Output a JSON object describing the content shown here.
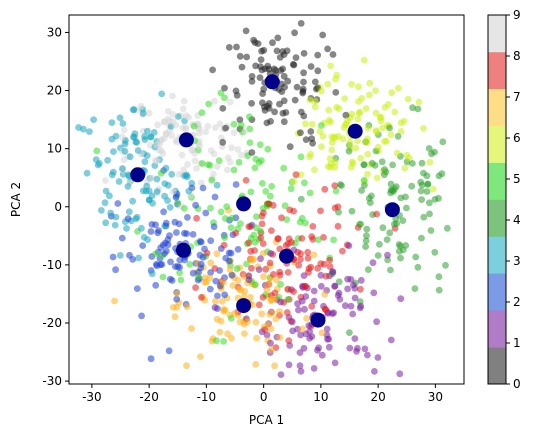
{
  "chart_data": {
    "type": "scatter",
    "xlabel": "PCA 1",
    "ylabel": "PCA 2",
    "xlim": [
      -34,
      35
    ],
    "ylim": [
      -30.5,
      33
    ],
    "xticks": [
      -30,
      -20,
      -10,
      0,
      10,
      20,
      30
    ],
    "yticks": [
      -30,
      -20,
      -10,
      0,
      10,
      20,
      30
    ],
    "grid": false,
    "colorbar": {
      "min": 0,
      "max": 9,
      "ticks": [
        "0",
        "1",
        "2",
        "3",
        "4",
        "5",
        "6",
        "7",
        "8",
        "9"
      ],
      "colors": [
        "#808080",
        "#b07cc8",
        "#7b9be6",
        "#7ccfdc",
        "#7cc47c",
        "#7ee87c",
        "#e6f57c",
        "#fddd86",
        "#ef8080",
        "#e6e6e6"
      ]
    },
    "series": [
      {
        "label": "0",
        "color": "#222222",
        "center": [
          1.5,
          21.5
        ],
        "spread": [
          6,
          5.5
        ]
      },
      {
        "label": "1",
        "color": "#7b1fa2",
        "center": [
          9.5,
          -19.5
        ],
        "spread": [
          6,
          5.5
        ]
      },
      {
        "label": "2",
        "color": "#1f3fd6",
        "center": [
          -14,
          -7.5
        ],
        "spread": [
          5.5,
          5.5
        ]
      },
      {
        "label": "3",
        "color": "#17a6c0",
        "center": [
          -22,
          5.5
        ],
        "spread": [
          5,
          6.5
        ]
      },
      {
        "label": "4",
        "color": "#2ca02c",
        "center": [
          22.5,
          -0.5
        ],
        "spread": [
          5.5,
          7.5
        ]
      },
      {
        "label": "5",
        "color": "#33dd22",
        "center": [
          -3.5,
          0.5
        ],
        "spread": [
          9,
          9
        ]
      },
      {
        "label": "6",
        "color": "#ccee11",
        "center": [
          16,
          13
        ],
        "spread": [
          5,
          5
        ]
      },
      {
        "label": "7",
        "color": "#ffb01a",
        "center": [
          -3.5,
          -17
        ],
        "spread": [
          6,
          5
        ]
      },
      {
        "label": "8",
        "color": "#e81c1c",
        "center": [
          4,
          -8.5
        ],
        "spread": [
          6,
          6
        ]
      },
      {
        "label": "9",
        "color": "#d6d6d6",
        "center": [
          -13.5,
          11.5
        ],
        "spread": [
          5,
          4
        ]
      }
    ],
    "centroids": [
      [
        1.5,
        21.5
      ],
      [
        9.5,
        -19.5
      ],
      [
        -14,
        -7.5
      ],
      [
        -22,
        5.5
      ],
      [
        22.5,
        -0.5
      ],
      [
        -3.5,
        0.5
      ],
      [
        16,
        13
      ],
      [
        -3.5,
        -17
      ],
      [
        4,
        -8.5
      ],
      [
        -13.5,
        11.5
      ]
    ],
    "centroid_color": "#00008b"
  }
}
